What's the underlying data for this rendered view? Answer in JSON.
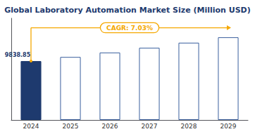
{
  "chart_data": {
    "type": "bar",
    "title": "Global Laboratory Automation Market Size (Million USD)",
    "categories": [
      "2024",
      "2025",
      "2026",
      "2027",
      "2028",
      "2029"
    ],
    "values": [
      9838.85,
      10530.23,
      11270.56,
      12063.18,
      12912.13,
      13820.43
    ],
    "value_labels": [
      "9838.85",
      null,
      null,
      null,
      null,
      null
    ],
    "colors": [
      "#1e3a6e",
      "#ffffff",
      "#ffffff",
      "#ffffff",
      "#ffffff",
      "#ffffff"
    ],
    "ylim": [
      0,
      17000
    ],
    "annotation": "CAGR: 7.03%",
    "grid": false,
    "tick_labels": "x"
  }
}
